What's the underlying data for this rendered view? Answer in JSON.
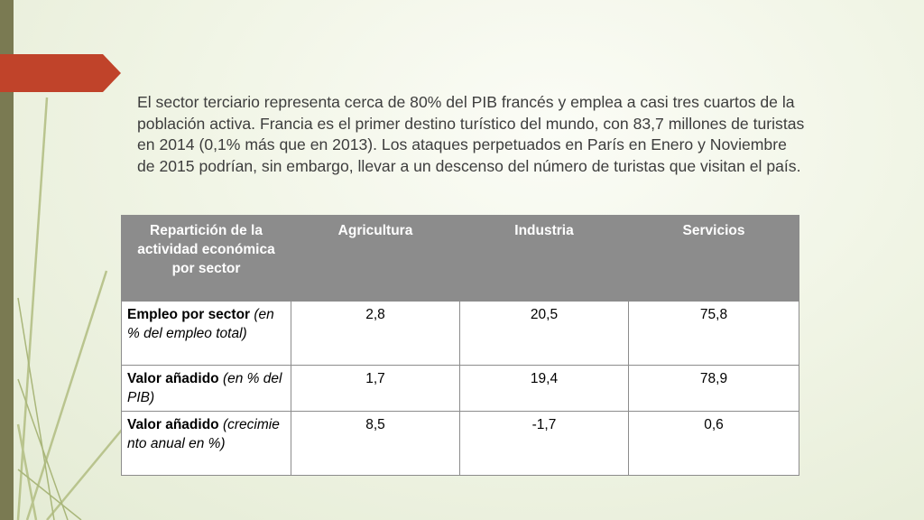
{
  "slide": {
    "paragraph": "El sector terciario representa cerca de 80% del PIB francés y emplea a casi tres cuartos de la población activa. Francia es el primer destino turístico del mundo, con 83,7 millones de turistas en 2014 (0,1% más que en 2013). Los ataques perpetuados en París en Enero y Noviembre de 2015 podrían, sin embargo, llevar a un descenso del número de turistas que visitan el país."
  },
  "table": {
    "headers": [
      "Repartición de la actividad económica por sector",
      "Agricultura",
      "Industria",
      "Servicios"
    ],
    "rows": [
      {
        "label_bold": "Empleo por sector",
        "label_italic": " (en % del empleo total)",
        "values": [
          "2,8",
          "20,5",
          "75,8"
        ]
      },
      {
        "label_bold": "Valor añadido",
        "label_italic": " (en % del PIB)",
        "values": [
          "1,7",
          "19,4",
          "78,9"
        ]
      },
      {
        "label_bold": "Valor añadido",
        "label_italic": " (crecimiento anual en %)",
        "values": [
          "8,5",
          "-1,7",
          "0,6"
        ]
      }
    ]
  },
  "colors": {
    "accent_tab": "#c0432a",
    "left_band": "#7a7a52",
    "header_fill": "#8c8c8c",
    "text": "#3d3d3d"
  }
}
